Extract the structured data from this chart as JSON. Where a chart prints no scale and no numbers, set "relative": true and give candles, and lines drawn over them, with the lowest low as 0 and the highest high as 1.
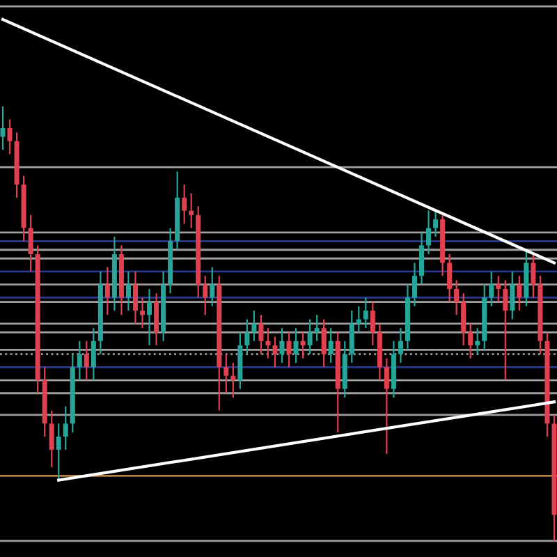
{
  "chart_data": {
    "type": "candlestick",
    "relative": true,
    "categories": [
      null,
      null,
      null,
      null,
      null,
      null,
      null,
      null,
      null,
      null,
      null,
      null,
      null,
      null,
      null,
      null,
      null,
      null,
      null,
      null,
      null,
      null,
      null,
      null,
      null,
      null,
      null,
      null,
      null,
      null,
      null,
      null,
      null,
      null,
      null,
      null,
      null,
      null,
      null,
      null,
      null,
      null,
      null,
      null,
      null,
      null,
      null,
      null,
      null,
      null,
      null,
      null,
      null,
      null,
      null,
      null,
      null,
      null,
      null,
      null,
      null,
      null,
      null,
      null,
      null,
      null,
      null,
      null,
      null,
      null,
      null,
      null,
      null,
      null,
      null,
      null,
      null,
      null,
      null,
      null
    ],
    "ohlc": [
      [
        0.93,
        1.0,
        0.9,
        0.95
      ],
      [
        0.95,
        0.97,
        0.89,
        0.92
      ],
      [
        0.92,
        0.94,
        0.79,
        0.82
      ],
      [
        0.82,
        0.84,
        0.69,
        0.72
      ],
      [
        0.72,
        0.75,
        0.62,
        0.66
      ],
      [
        0.66,
        0.68,
        0.34,
        0.37
      ],
      [
        0.37,
        0.4,
        0.24,
        0.27
      ],
      [
        0.27,
        0.3,
        0.17,
        0.21
      ],
      [
        0.21,
        0.27,
        0.14,
        0.24
      ],
      [
        0.24,
        0.31,
        0.21,
        0.27
      ],
      [
        0.27,
        0.43,
        0.25,
        0.4
      ],
      [
        0.4,
        0.46,
        0.37,
        0.43
      ],
      [
        0.43,
        0.46,
        0.37,
        0.4
      ],
      [
        0.4,
        0.49,
        0.37,
        0.46
      ],
      [
        0.46,
        0.62,
        0.43,
        0.59
      ],
      [
        0.59,
        0.63,
        0.52,
        0.56
      ],
      [
        0.56,
        0.7,
        0.53,
        0.66
      ],
      [
        0.66,
        0.68,
        0.52,
        0.56
      ],
      [
        0.56,
        0.62,
        0.53,
        0.59
      ],
      [
        0.59,
        0.62,
        0.5,
        0.53
      ],
      [
        0.53,
        0.56,
        0.49,
        0.52
      ],
      [
        0.52,
        0.58,
        0.45,
        0.55
      ],
      [
        0.55,
        0.57,
        0.45,
        0.48
      ],
      [
        0.48,
        0.62,
        0.46,
        0.59
      ],
      [
        0.59,
        0.72,
        0.57,
        0.69
      ],
      [
        0.69,
        0.85,
        0.67,
        0.79
      ],
      [
        0.79,
        0.82,
        0.73,
        0.76
      ],
      [
        0.76,
        0.8,
        0.72,
        0.75
      ],
      [
        0.75,
        0.77,
        0.56,
        0.59
      ],
      [
        0.59,
        0.61,
        0.52,
        0.56
      ],
      [
        0.56,
        0.63,
        0.54,
        0.59
      ],
      [
        0.59,
        0.61,
        0.3,
        0.4
      ],
      [
        0.4,
        0.43,
        0.34,
        0.38
      ],
      [
        0.38,
        0.41,
        0.33,
        0.37
      ],
      [
        0.37,
        0.48,
        0.35,
        0.45
      ],
      [
        0.45,
        0.51,
        0.43,
        0.48
      ],
      [
        0.48,
        0.53,
        0.46,
        0.5
      ],
      [
        0.5,
        0.52,
        0.43,
        0.46
      ],
      [
        0.46,
        0.49,
        0.42,
        0.45
      ],
      [
        0.45,
        0.47,
        0.4,
        0.43
      ],
      [
        0.43,
        0.49,
        0.41,
        0.46
      ],
      [
        0.46,
        0.48,
        0.4,
        0.43
      ],
      [
        0.43,
        0.49,
        0.41,
        0.46
      ],
      [
        0.46,
        0.48,
        0.42,
        0.45
      ],
      [
        0.45,
        0.51,
        0.43,
        0.48
      ],
      [
        0.48,
        0.52,
        0.46,
        0.49
      ],
      [
        0.49,
        0.51,
        0.4,
        0.43
      ],
      [
        0.43,
        0.49,
        0.41,
        0.46
      ],
      [
        0.46,
        0.48,
        0.25,
        0.35
      ],
      [
        0.35,
        0.46,
        0.33,
        0.43
      ],
      [
        0.43,
        0.53,
        0.41,
        0.5
      ],
      [
        0.5,
        0.54,
        0.48,
        0.51
      ],
      [
        0.51,
        0.56,
        0.49,
        0.53
      ],
      [
        0.53,
        0.55,
        0.45,
        0.48
      ],
      [
        0.48,
        0.5,
        0.37,
        0.4
      ],
      [
        0.4,
        0.42,
        0.2,
        0.35
      ],
      [
        0.35,
        0.46,
        0.33,
        0.43
      ],
      [
        0.43,
        0.49,
        0.41,
        0.46
      ],
      [
        0.46,
        0.59,
        0.44,
        0.56
      ],
      [
        0.56,
        0.64,
        0.54,
        0.61
      ],
      [
        0.61,
        0.71,
        0.59,
        0.68
      ],
      [
        0.68,
        0.76,
        0.66,
        0.72
      ],
      [
        0.72,
        0.76,
        0.7,
        0.74
      ],
      [
        0.74,
        0.75,
        0.61,
        0.64
      ],
      [
        0.64,
        0.66,
        0.55,
        0.58
      ],
      [
        0.58,
        0.6,
        0.52,
        0.55
      ],
      [
        0.55,
        0.57,
        0.45,
        0.48
      ],
      [
        0.48,
        0.5,
        0.42,
        0.45
      ],
      [
        0.45,
        0.49,
        0.43,
        0.46
      ],
      [
        0.46,
        0.59,
        0.44,
        0.56
      ],
      [
        0.56,
        0.62,
        0.54,
        0.59
      ],
      [
        0.59,
        0.61,
        0.55,
        0.58
      ],
      [
        0.58,
        0.6,
        0.37,
        0.53
      ],
      [
        0.53,
        0.62,
        0.51,
        0.59
      ],
      [
        0.59,
        0.61,
        0.53,
        0.56
      ],
      [
        0.56,
        0.67,
        0.54,
        0.64
      ],
      [
        0.64,
        0.66,
        0.56,
        0.59
      ],
      [
        0.59,
        0.61,
        0.43,
        0.46
      ],
      [
        0.46,
        0.48,
        0.24,
        0.27
      ],
      [
        0.27,
        0.29,
        0.0,
        0.06
      ]
    ],
    "colors": [
      "#26a69a",
      "#e04050",
      "#e04050",
      "#e04050",
      "#e04050",
      "#e04050",
      "#e04050",
      "#e04050",
      "#26a69a",
      "#26a69a",
      "#26a69a",
      "#26a69a",
      "#e04050",
      "#26a69a",
      "#26a69a",
      "#e04050",
      "#26a69a",
      "#e04050",
      "#26a69a",
      "#e04050",
      "#e04050",
      "#26a69a",
      "#e04050",
      "#26a69a",
      "#26a69a",
      "#26a69a",
      "#e04050",
      "#e04050",
      "#e04050",
      "#e04050",
      "#26a69a",
      "#e04050",
      "#e04050",
      "#e04050",
      "#26a69a",
      "#26a69a",
      "#26a69a",
      "#e04050",
      "#e04050",
      "#e04050",
      "#26a69a",
      "#e04050",
      "#26a69a",
      "#e04050",
      "#26a69a",
      "#26a69a",
      "#e04050",
      "#26a69a",
      "#e04050",
      "#26a69a",
      "#26a69a",
      "#26a69a",
      "#26a69a",
      "#e04050",
      "#e04050",
      "#e04050",
      "#26a69a",
      "#26a69a",
      "#26a69a",
      "#26a69a",
      "#26a69a",
      "#26a69a",
      "#26a69a",
      "#e04050",
      "#e04050",
      "#e04050",
      "#e04050",
      "#e04050",
      "#26a69a",
      "#26a69a",
      "#26a69a",
      "#e04050",
      "#e04050",
      "#26a69a",
      "#e04050",
      "#26a69a",
      "#e04050",
      "#e04050",
      "#e04050",
      "#e04050"
    ],
    "series": [
      {
        "type": "line",
        "color": "#ffffff",
        "values": [
          1.2,
          null,
          null,
          null,
          null,
          null,
          null,
          null,
          null,
          null,
          null,
          null,
          null,
          null,
          null,
          null,
          null,
          null,
          null,
          null,
          null,
          null,
          null,
          null,
          null,
          null,
          null,
          null,
          null,
          null,
          null,
          null,
          null,
          null,
          null,
          null,
          null,
          null,
          null,
          null,
          null,
          null,
          null,
          null,
          null,
          null,
          null,
          null,
          null,
          null,
          null,
          null,
          null,
          null,
          null,
          null,
          null,
          null,
          null,
          null,
          null,
          null,
          null,
          null,
          null,
          null,
          null,
          null,
          null,
          null,
          null,
          null,
          null,
          null,
          null,
          null,
          null,
          null,
          null,
          0.64
        ]
      },
      {
        "type": "line",
        "color": "#ffffff",
        "values": [
          null,
          null,
          null,
          null,
          null,
          null,
          null,
          null,
          0.14,
          null,
          null,
          null,
          null,
          null,
          null,
          null,
          null,
          null,
          null,
          null,
          null,
          null,
          null,
          null,
          null,
          null,
          null,
          null,
          null,
          null,
          null,
          null,
          null,
          null,
          null,
          null,
          null,
          null,
          null,
          null,
          null,
          null,
          null,
          null,
          null,
          null,
          null,
          null,
          null,
          null,
          null,
          null,
          null,
          null,
          null,
          null,
          null,
          null,
          null,
          null,
          null,
          null,
          null,
          null,
          null,
          null,
          null,
          null,
          null,
          null,
          null,
          null,
          null,
          null,
          null,
          null,
          null,
          null,
          null,
          0.32
        ]
      }
    ],
    "ref_lines": [
      {
        "axis": "y",
        "value": 1.23,
        "color": "#a0a0a0"
      },
      {
        "axis": "y",
        "value": 0.86,
        "color": "#a0a0a0"
      },
      {
        "axis": "y",
        "value": 0.71,
        "color": "#a0a0a0"
      },
      {
        "axis": "y",
        "value": 0.69,
        "color": "#2a3a8a"
      },
      {
        "axis": "y",
        "value": 0.67,
        "color": "#a0a0a0"
      },
      {
        "axis": "y",
        "value": 0.65,
        "color": "#a0a0a0"
      },
      {
        "axis": "y",
        "value": 0.62,
        "color": "#2a3a8a"
      },
      {
        "axis": "y",
        "value": 0.59,
        "color": "#a0a0a0"
      },
      {
        "axis": "y",
        "value": 0.56,
        "color": "#2a3a8a"
      },
      {
        "axis": "y",
        "value": 0.55,
        "color": "#a0a0a0"
      },
      {
        "axis": "y",
        "value": 0.5,
        "color": "#a0a0a0"
      },
      {
        "axis": "y",
        "value": 0.48,
        "color": "#a0a0a0"
      },
      {
        "axis": "y",
        "value": 0.44,
        "color": "#a0a0a0"
      },
      {
        "axis": "y",
        "value": 0.43,
        "color": "#a0a0a0",
        "line_style": "dotted"
      },
      {
        "axis": "y",
        "value": 0.4,
        "color": "#2a3a8a"
      },
      {
        "axis": "y",
        "value": 0.37,
        "color": "#a0a0a0"
      },
      {
        "axis": "y",
        "value": 0.34,
        "color": "#a0a0a0"
      },
      {
        "axis": "y",
        "value": 0.29,
        "color": "#a0a0a0"
      },
      {
        "axis": "y",
        "value": 0.15,
        "color": "#b08040"
      },
      {
        "axis": "y",
        "value": 0.0,
        "color": "#a0a0a0"
      }
    ]
  }
}
